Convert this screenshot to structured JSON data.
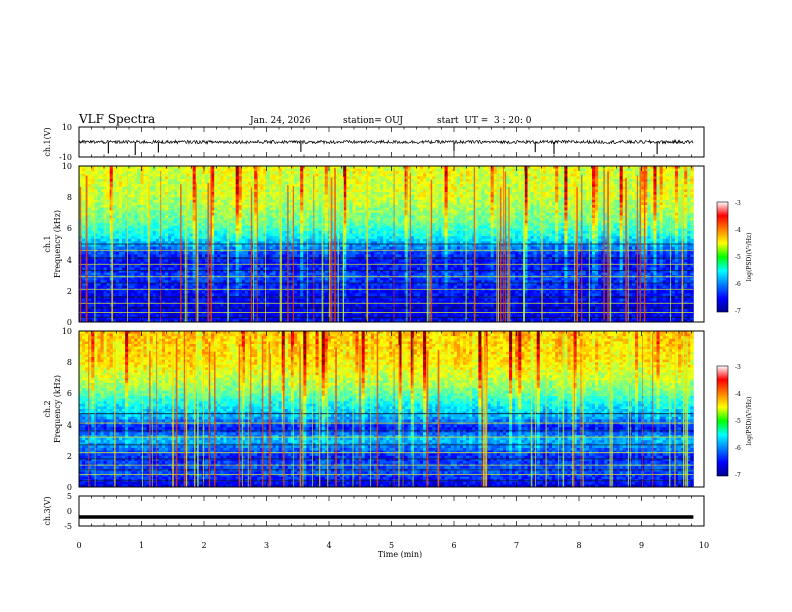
{
  "header": {
    "title": "VLF Spectra",
    "date": "Jan. 24, 2026",
    "station": "station= OUJ",
    "start": "start  UT =  3 : 20: 0"
  },
  "chart_data": [
    {
      "type": "line",
      "name": "ch1-waveform",
      "ylabel": "ch.1(V)",
      "ylim": [
        -10,
        10
      ],
      "y_ticks": [
        "10",
        "-10"
      ],
      "baseline": 0,
      "x_range": [
        0,
        10
      ],
      "data_end_min": 9.83,
      "spikes_min": [
        0.47,
        0.9,
        1.27,
        3.55,
        6.0,
        7.3,
        7.6,
        9.25
      ]
    },
    {
      "type": "heatmap",
      "name": "ch1-spectrogram",
      "ylabel": "ch.1\nFrequency (kHz)",
      "ylabel_top": "ch.1",
      "ylabel_bottom": "Frequency (kHz)",
      "ylim": [
        0,
        10
      ],
      "y_ticks": [
        "0",
        "2",
        "4",
        "6",
        "8",
        "10"
      ],
      "x_range": [
        0,
        10
      ],
      "data_end_min": 9.83,
      "colorbar": {
        "label": "log(PSD)(V²/Hz)",
        "range": [
          -7,
          -3
        ],
        "ticks": [
          "-3",
          "-4",
          "-5",
          "-6",
          "-7"
        ]
      },
      "narrowband_lines_khz": [
        0.3,
        0.6,
        0.9,
        1.2,
        1.6,
        2.1,
        2.5,
        2.9,
        3.3,
        3.7,
        4.1,
        4.6,
        5.0
      ],
      "band_profile_db": [
        [
          0,
          -6.5
        ],
        [
          1,
          -6.6
        ],
        [
          2,
          -6.5
        ],
        [
          3,
          -6.3
        ],
        [
          3.8,
          -6.6
        ],
        [
          4.5,
          -6.3
        ],
        [
          5.5,
          -5.6
        ],
        [
          6.5,
          -5.2
        ],
        [
          8,
          -4.9
        ],
        [
          10,
          -4.8
        ]
      ]
    },
    {
      "type": "heatmap",
      "name": "ch2-spectrogram",
      "ylabel": "ch.2\nFrequency (kHz)",
      "ylabel_top": "ch.2",
      "ylabel_bottom": "Frequency (kHz)",
      "ylim": [
        0,
        10
      ],
      "y_ticks": [
        "0",
        "2",
        "4",
        "6",
        "8",
        "10"
      ],
      "x_range": [
        0,
        10
      ],
      "data_end_min": 9.83,
      "colorbar": {
        "label": "log(PSD)(V²/Hz)",
        "range": [
          -7,
          -3
        ],
        "ticks": [
          "-3",
          "-4",
          "-5",
          "-6",
          "-7"
        ]
      },
      "narrowband_lines_khz": [
        0.4,
        0.8,
        1.1,
        1.4,
        1.8,
        2.2,
        2.7,
        3.2,
        3.6,
        4.1,
        4.7
      ],
      "band_profile_db": [
        [
          0,
          -6.6
        ],
        [
          1,
          -6.2
        ],
        [
          2,
          -6.4
        ],
        [
          3,
          -5.8
        ],
        [
          3.8,
          -6.5
        ],
        [
          4.5,
          -5.9
        ],
        [
          5.5,
          -5.5
        ],
        [
          6.5,
          -5.0
        ],
        [
          8,
          -4.6
        ],
        [
          10,
          -4.5
        ]
      ]
    },
    {
      "type": "line",
      "name": "ch3-waveform",
      "ylabel": "ch.3(V)",
      "ylim": [
        -5,
        5
      ],
      "y_ticks": [
        "5",
        "0",
        "-5"
      ],
      "baseline": -2,
      "x_range": [
        0,
        10
      ],
      "data_end_min": 9.83
    }
  ],
  "x_axis": {
    "label": "Time (min)",
    "ticks": [
      "0",
      "1",
      "2",
      "3",
      "4",
      "5",
      "6",
      "7",
      "8",
      "9",
      "10"
    ]
  }
}
